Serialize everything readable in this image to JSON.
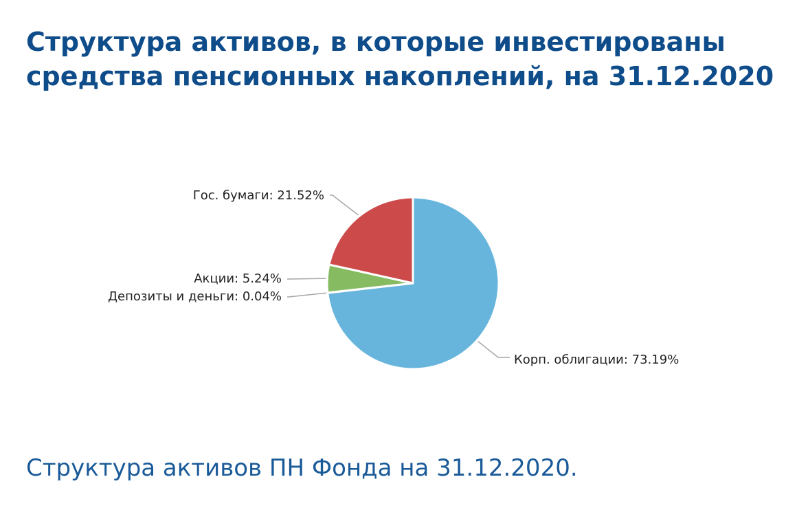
{
  "page": {
    "title": "Структура активов, в которые инвестированы средства пенсионных накоплений, на 31.12.2020",
    "caption": "Структура активов ПН Фонда на 31.12.2020."
  },
  "chart_data": {
    "type": "pie",
    "title": "",
    "start": "top",
    "direction": "clockwise",
    "slices": [
      {
        "label": "Корп. облигации",
        "value": 73.19,
        "display": "Корп. облигации: 73.19%",
        "color": "#67b5dc"
      },
      {
        "label": "Депозиты и деньги",
        "value": 0.04,
        "display": "Депозиты и деньги: 0.04%",
        "color": "#2e6fba"
      },
      {
        "label": "Акции",
        "value": 5.24,
        "display": "Акции: 5.24%",
        "color": "#86bb62"
      },
      {
        "label": "Гос. бумаги",
        "value": 21.52,
        "display": "Гос. бумаги: 21.52%",
        "color": "#cc4a4a"
      }
    ]
  }
}
